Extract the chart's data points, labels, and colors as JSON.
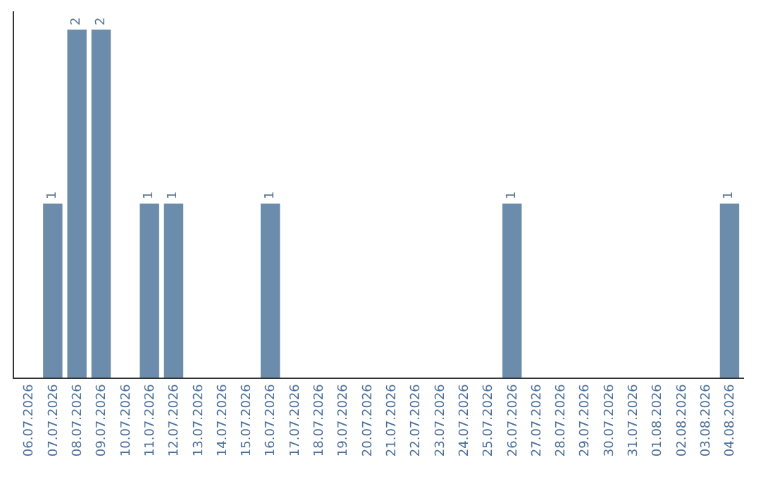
{
  "chart_data": {
    "type": "bar",
    "categories": [
      "06.07.2026",
      "07.07.2026",
      "08.07.2026",
      "09.07.2026",
      "10.07.2026",
      "11.07.2026",
      "12.07.2026",
      "13.07.2026",
      "14.07.2026",
      "15.07.2026",
      "16.07.2026",
      "17.07.2026",
      "18.07.2026",
      "19.07.2026",
      "20.07.2026",
      "21.07.2026",
      "22.07.2026",
      "23.07.2026",
      "24.07.2026",
      "25.07.2026",
      "26.07.2026",
      "27.07.2026",
      "28.07.2026",
      "29.07.2026",
      "30.07.2026",
      "31.07.2026",
      "01.08.2026",
      "02.08.2026",
      "03.08.2026",
      "04.08.2026"
    ],
    "values": [
      0,
      1,
      2,
      2,
      0,
      1,
      1,
      0,
      0,
      0,
      1,
      0,
      0,
      0,
      0,
      0,
      0,
      0,
      0,
      0,
      1,
      0,
      0,
      0,
      0,
      0,
      0,
      0,
      0,
      1
    ],
    "value_labels": [
      null,
      "1",
      "2",
      "2",
      null,
      "1",
      "1",
      null,
      null,
      null,
      "1",
      null,
      null,
      null,
      null,
      null,
      null,
      null,
      null,
      null,
      "1",
      null,
      null,
      null,
      null,
      null,
      null,
      null,
      null,
      "1"
    ],
    "color": "#6b8caa"
  }
}
